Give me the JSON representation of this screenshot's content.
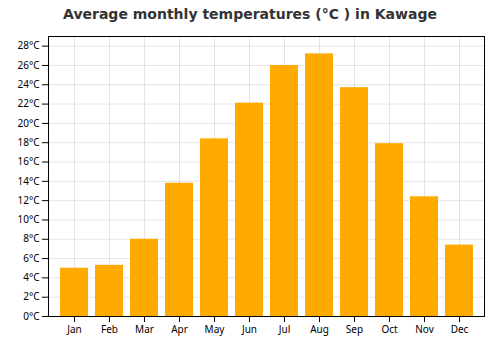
{
  "chart_data": {
    "type": "bar",
    "title": "Average monthly temperatures (°C ) in Kawage",
    "categories": [
      "Jan",
      "Feb",
      "Mar",
      "Apr",
      "May",
      "Jun",
      "Jul",
      "Aug",
      "Sep",
      "Oct",
      "Nov",
      "Dec"
    ],
    "values": [
      5.0,
      5.3,
      8.0,
      13.8,
      18.4,
      22.1,
      26.0,
      27.2,
      23.7,
      17.9,
      12.4,
      7.4
    ],
    "color": "#FFAA00",
    "ylim": [
      0,
      29
    ],
    "yticks": [
      {
        "value": 0,
        "label": "0°C"
      },
      {
        "value": 2,
        "label": "2°C"
      },
      {
        "value": 4,
        "label": "4°C"
      },
      {
        "value": 6,
        "label": "6°C"
      },
      {
        "value": 8,
        "label": "8°C"
      },
      {
        "value": 10,
        "label": "10°C"
      },
      {
        "value": 12,
        "label": "12°C"
      },
      {
        "value": 14,
        "label": "14°C"
      },
      {
        "value": 16,
        "label": "16°C"
      },
      {
        "value": 18,
        "label": "18°C"
      },
      {
        "value": 20,
        "label": "20°C"
      },
      {
        "value": 22,
        "label": "22°C"
      },
      {
        "value": 24,
        "label": "24°C"
      },
      {
        "value": 26,
        "label": "26°C"
      },
      {
        "value": 28,
        "label": "28°C"
      }
    ],
    "grid": true
  }
}
